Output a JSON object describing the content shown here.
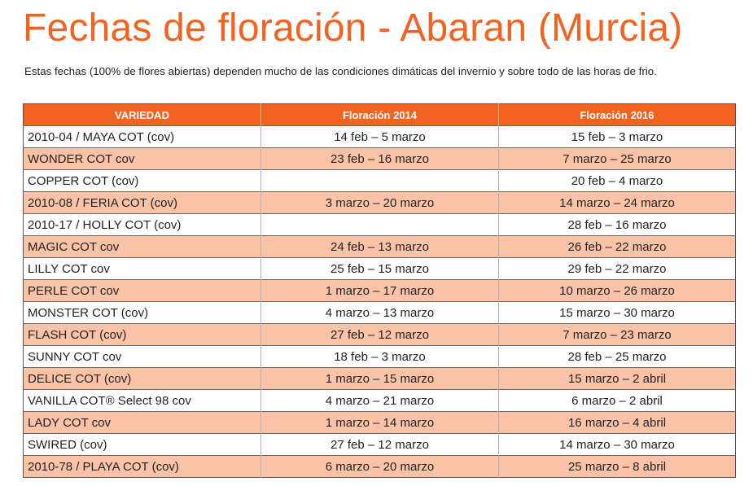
{
  "title": "Fechas de floración -  Abaran (Murcia)",
  "subtitle": "Estas fechas (100% de flores abiertas) dependen mucho de las condiciones dimáticas del invernio y sobre todo de  las horas de frio.",
  "colors": {
    "accent": "#f26322",
    "alt_row": "#fac3a8",
    "header_text": "#ffffff"
  },
  "table": {
    "headers": [
      "VARIEDAD",
      "Floración 2014",
      "Floración 2016"
    ],
    "rows": [
      [
        "2010-04 / MAYA COT (cov)",
        "14 feb – 5 marzo",
        "15 feb – 3 marzo"
      ],
      [
        "WONDER COT cov",
        "23 feb – 16 marzo",
        "7 marzo – 25 marzo"
      ],
      [
        "COPPER COT (cov)",
        "",
        "20 feb – 4 marzo"
      ],
      [
        "2010-08 / FERIA COT (cov)",
        "3 marzo – 20 marzo",
        "14 marzo – 24 marzo"
      ],
      [
        "2010-17 / HOLLY COT (cov)",
        "",
        "28 feb – 16 marzo"
      ],
      [
        "MAGIC COT cov",
        "24 feb – 13 marzo",
        "26 feb – 22 marzo"
      ],
      [
        "LILLY COT cov",
        "25 feb – 15 marzo",
        "29 feb – 22 marzo"
      ],
      [
        "PERLE COT cov",
        "1 marzo – 17 marzo",
        "10 marzo – 26 marzo"
      ],
      [
        "MONSTER COT (cov)",
        "4 marzo – 13 marzo",
        "15 marzo – 30 marzo"
      ],
      [
        "FLASH COT (cov)",
        "27 feb – 12 marzo",
        "7 marzo – 23 marzo"
      ],
      [
        "SUNNY COT cov",
        "18 feb – 3 marzo",
        "28 feb – 25 marzo"
      ],
      [
        "DELICE COT (cov)",
        "1 marzo – 15 marzo",
        "15 marzo – 2 abril"
      ],
      [
        "VANILLA COT® Select 98 cov",
        "4 marzo – 21 marzo",
        "6 marzo – 2 abril"
      ],
      [
        "LADY COT cov",
        "1 marzo – 14 marzo",
        "16 marzo – 4 abril"
      ],
      [
        "SWIRED (cov)",
        "27 feb – 12 marzo",
        "14 marzo – 30 marzo"
      ],
      [
        "2010-78 / PLAYA COT (cov)",
        "6 marzo – 20 marzo",
        "25 marzo – 8 abril"
      ]
    ]
  }
}
